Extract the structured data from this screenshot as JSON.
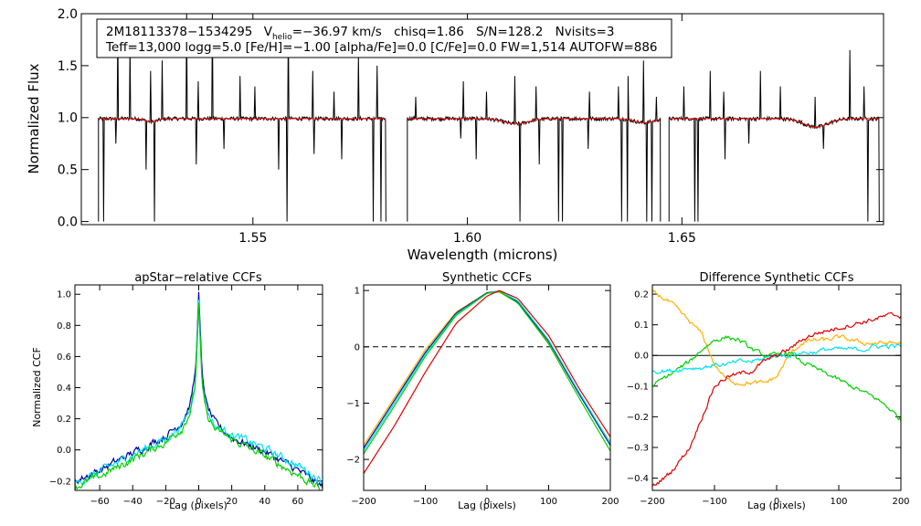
{
  "figure": {
    "info_line1": {
      "star": "2M18113378−1534295",
      "v_prefix": "V",
      "v_sub": "helio",
      "v_value": "=−36.97 km/s",
      "chisq": "chisq=1.86",
      "sn": "S/N=128.2",
      "nvisits": "Nvisits=3"
    },
    "info_line2": "Teff=13,000 logg=5.0 [Fe/H]=−1.00 [alpha/Fe]=0.0 [C/Fe]=0.0 FW=1,514 AUTOFW=886"
  },
  "colors": {
    "observed": "#000000",
    "model": "#ff0000",
    "ccf_blue": "#0000a0",
    "ccf_green": "#00d000",
    "ccf_cyan": "#00e0f0",
    "ccf_orange": "#ffb000",
    "ccf_red": "#e00000"
  },
  "chart_data": [
    {
      "id": "spectrum",
      "type": "line",
      "title": "",
      "xlabel": "Wavelength (microns)",
      "ylabel": "Normalized Flux",
      "xlim": [
        1.51,
        1.697
      ],
      "ylim": [
        -0.03,
        2.0
      ],
      "xticks": [
        1.55,
        1.6,
        1.65
      ],
      "xtick_labels": [
        "1.55",
        "1.60",
        "1.65"
      ],
      "yticks": [
        0.0,
        0.5,
        1.0,
        1.5,
        2.0
      ],
      "ytick_labels": [
        "0.0",
        "0.5",
        "1.0",
        "1.5",
        "2.0"
      ],
      "segments": [
        [
          1.514,
          1.581
        ],
        [
          1.586,
          1.645
        ],
        [
          1.647,
          1.696
        ]
      ],
      "continuum": 0.99,
      "broad_features": [
        {
          "center": 1.5263,
          "depth": 0.03,
          "width": 0.002
        },
        {
          "center": 1.6113,
          "depth": 0.05,
          "width": 0.004
        },
        {
          "center": 1.6411,
          "depth": 0.04,
          "width": 0.003
        },
        {
          "center": 1.6812,
          "depth": 0.08,
          "width": 0.004
        }
      ],
      "emission_spikes": [
        [
          1.5185,
          1.9
        ],
        [
          1.5213,
          1.7
        ],
        [
          1.5262,
          1.45
        ],
        [
          1.5289,
          1.55
        ],
        [
          1.5345,
          2.0
        ],
        [
          1.5372,
          1.35
        ],
        [
          1.5405,
          2.0
        ],
        [
          1.5432,
          1.6
        ],
        [
          1.547,
          1.4
        ],
        [
          1.5505,
          1.3
        ],
        [
          1.556,
          1.6
        ],
        [
          1.5582,
          1.9
        ],
        [
          1.564,
          1.45
        ],
        [
          1.5689,
          1.25
        ],
        [
          1.5746,
          1.6
        ],
        [
          1.579,
          1.5
        ],
        [
          1.5879,
          1.2
        ],
        [
          1.599,
          1.35
        ],
        [
          1.6045,
          1.25
        ],
        [
          1.611,
          1.4
        ],
        [
          1.616,
          1.3
        ],
        [
          1.6222,
          1.35
        ],
        [
          1.6285,
          1.25
        ],
        [
          1.6352,
          1.3
        ],
        [
          1.6375,
          1.4
        ],
        [
          1.6411,
          1.55
        ],
        [
          1.644,
          1.2
        ],
        [
          1.6505,
          1.3
        ],
        [
          1.6566,
          1.45
        ],
        [
          1.6597,
          1.25
        ],
        [
          1.6683,
          1.45
        ],
        [
          1.673,
          1.3
        ],
        [
          1.681,
          1.2
        ],
        [
          1.6892,
          1.65
        ],
        [
          1.6925,
          1.3
        ]
      ],
      "absorption_spikes": [
        [
          1.5152,
          0.0
        ],
        [
          1.518,
          0.75
        ],
        [
          1.5251,
          0.5
        ],
        [
          1.527,
          0.0
        ],
        [
          1.5368,
          0.55
        ],
        [
          1.5432,
          0.7
        ],
        [
          1.556,
          0.5
        ],
        [
          1.558,
          0.0
        ],
        [
          1.5643,
          0.65
        ],
        [
          1.5707,
          0.6
        ],
        [
          1.578,
          0.0
        ],
        [
          1.5799,
          0.0
        ],
        [
          1.5812,
          0.0
        ],
        [
          1.5984,
          0.8
        ],
        [
          1.6021,
          0.6
        ],
        [
          1.6123,
          0.0
        ],
        [
          1.6168,
          0.55
        ],
        [
          1.6213,
          0.0
        ],
        [
          1.6221,
          0.0
        ],
        [
          1.6281,
          0.7
        ],
        [
          1.636,
          0.0
        ],
        [
          1.6373,
          0.0
        ],
        [
          1.6418,
          0.0
        ],
        [
          1.643,
          0.0
        ],
        [
          1.653,
          0.0
        ],
        [
          1.6537,
          0.0
        ],
        [
          1.6601,
          0.6
        ],
        [
          1.6656,
          0.75
        ],
        [
          1.683,
          0.7
        ],
        [
          1.6934,
          0.0
        ]
      ]
    },
    {
      "id": "apstar-ccfs",
      "type": "line",
      "title": "apStar−relative CCFs",
      "xlabel": "Lag (pixels)",
      "ylabel": "Normalized CCF",
      "xlim": [
        -75,
        75
      ],
      "ylim": [
        -0.26,
        1.06
      ],
      "xticks": [
        -60,
        -40,
        -20,
        0,
        20,
        40,
        60
      ],
      "xtick_labels": [
        "−60",
        "−40",
        "−20",
        "0",
        "20",
        "40",
        "60"
      ],
      "yticks": [
        -0.2,
        0.0,
        0.2,
        0.4,
        0.6,
        0.8,
        1.0
      ],
      "ytick_labels": [
        "−0.2",
        "0.0",
        "0.2",
        "0.4",
        "0.6",
        "0.8",
        "1.0"
      ],
      "series": [
        {
          "name": "visit-1",
          "color": "#0000a0",
          "x": [
            -75,
            -60,
            -40,
            -20,
            -10,
            -5,
            -2,
            0,
            2,
            5,
            10,
            20,
            40,
            60,
            75
          ],
          "y": [
            -0.2,
            -0.13,
            -0.02,
            0.09,
            0.18,
            0.3,
            0.5,
            1.0,
            0.48,
            0.28,
            0.17,
            0.08,
            -0.01,
            -0.13,
            -0.24
          ]
        },
        {
          "name": "visit-2",
          "color": "#00e0f0",
          "x": [
            -75,
            -60,
            -40,
            -20,
            -10,
            -5,
            -2,
            0,
            2,
            5,
            10,
            20,
            40,
            60,
            75
          ],
          "y": [
            -0.22,
            -0.14,
            -0.03,
            0.07,
            0.16,
            0.27,
            0.45,
            0.97,
            0.44,
            0.25,
            0.15,
            0.1,
            0.01,
            -0.1,
            -0.2
          ]
        },
        {
          "name": "visit-3",
          "color": "#00d000",
          "x": [
            -75,
            -60,
            -40,
            -20,
            -10,
            -5,
            -2,
            0,
            2,
            5,
            10,
            20,
            40,
            60,
            75
          ],
          "y": [
            -0.24,
            -0.17,
            -0.06,
            0.05,
            0.14,
            0.25,
            0.42,
            0.93,
            0.4,
            0.22,
            0.13,
            0.07,
            -0.04,
            -0.16,
            -0.26
          ]
        }
      ]
    },
    {
      "id": "synthetic-ccfs",
      "type": "line",
      "title": "Synthetic CCFs",
      "xlabel": "Lag (pixels)",
      "ylabel": "",
      "xlim": [
        -200,
        200
      ],
      "ylim": [
        -2.55,
        1.1
      ],
      "xticks": [
        -200,
        -100,
        0,
        100,
        200
      ],
      "xtick_labels": [
        "−200",
        "−100",
        "0",
        "100",
        "200"
      ],
      "yticks": [
        -2,
        -1,
        0,
        1
      ],
      "ytick_labels": [
        "−2",
        "−1",
        "0",
        "1"
      ],
      "zero_line": 0,
      "series": [
        {
          "name": "synthetic-1",
          "color": "#ffb000",
          "x": [
            -200,
            -150,
            -100,
            -50,
            0,
            20,
            50,
            100,
            150,
            200
          ],
          "y": [
            -1.75,
            -0.9,
            -0.05,
            0.62,
            0.96,
            0.97,
            0.78,
            0.08,
            -0.85,
            -1.7
          ]
        },
        {
          "name": "synthetic-2",
          "color": "#0000a0",
          "x": [
            -200,
            -150,
            -100,
            -50,
            0,
            20,
            50,
            100,
            150,
            200
          ],
          "y": [
            -1.8,
            -0.95,
            -0.1,
            0.6,
            0.96,
            0.99,
            0.8,
            0.1,
            -0.85,
            -1.75
          ]
        },
        {
          "name": "synthetic-3",
          "color": "#00e0f0",
          "x": [
            -200,
            -150,
            -100,
            -50,
            0,
            20,
            50,
            100,
            150,
            200
          ],
          "y": [
            -1.85,
            -1.0,
            -0.13,
            0.58,
            0.95,
            0.99,
            0.82,
            0.12,
            -0.82,
            -1.72
          ]
        },
        {
          "name": "synthetic-4",
          "color": "#00d000",
          "x": [
            -200,
            -150,
            -100,
            -50,
            0,
            20,
            50,
            100,
            150,
            200
          ],
          "y": [
            -1.9,
            -1.05,
            -0.17,
            0.56,
            0.95,
            0.98,
            0.78,
            0.05,
            -0.92,
            -1.85
          ]
        },
        {
          "name": "synthetic-5",
          "color": "#e00000",
          "x": [
            -200,
            -150,
            -100,
            -50,
            0,
            20,
            50,
            100,
            150,
            200
          ],
          "y": [
            -2.25,
            -1.4,
            -0.45,
            0.42,
            0.9,
            1.0,
            0.86,
            0.2,
            -0.75,
            -1.6
          ]
        }
      ]
    },
    {
      "id": "difference-ccfs",
      "type": "line",
      "title": "Difference Synthetic CCFs",
      "xlabel": "Lag (pixels)",
      "ylabel": "",
      "xlim": [
        -200,
        200
      ],
      "ylim": [
        -0.44,
        0.23
      ],
      "xticks": [
        -200,
        -100,
        0,
        100,
        200
      ],
      "xtick_labels": [
        "−200",
        "−100",
        "0",
        "100",
        "200"
      ],
      "yticks": [
        -0.4,
        -0.3,
        -0.2,
        -0.1,
        0.0,
        0.1,
        0.2
      ],
      "ytick_labels": [
        "−0.4",
        "−0.3",
        "−0.2",
        "−0.1",
        "0.0",
        "0.1",
        "0.2"
      ],
      "zero_line": 0,
      "series": [
        {
          "name": "diff-orange",
          "color": "#ffb000",
          "x": [
            -200,
            -170,
            -140,
            -120,
            -100,
            -80,
            -60,
            -40,
            -20,
            0,
            20,
            40,
            60,
            80,
            100,
            120,
            140,
            160,
            180,
            200
          ],
          "y": [
            0.21,
            0.17,
            0.11,
            0.07,
            -0.03,
            -0.08,
            -0.09,
            -0.09,
            -0.09,
            -0.07,
            0.0,
            0.04,
            0.05,
            0.05,
            0.06,
            0.05,
            0.04,
            0.04,
            0.04,
            0.04
          ]
        },
        {
          "name": "diff-green",
          "color": "#00d000",
          "x": [
            -200,
            -170,
            -140,
            -120,
            -100,
            -80,
            -60,
            -40,
            -20,
            0,
            20,
            40,
            60,
            80,
            100,
            120,
            140,
            160,
            180,
            200
          ],
          "y": [
            -0.1,
            -0.06,
            -0.02,
            0.02,
            0.05,
            0.06,
            0.05,
            0.02,
            0.0,
            0.0,
            0.01,
            -0.02,
            -0.04,
            -0.06,
            -0.08,
            -0.1,
            -0.12,
            -0.14,
            -0.17,
            -0.21
          ]
        },
        {
          "name": "diff-cyan",
          "color": "#00e0f0",
          "x": [
            -200,
            -170,
            -140,
            -120,
            -100,
            -80,
            -60,
            -40,
            -20,
            0,
            20,
            40,
            60,
            80,
            100,
            120,
            140,
            160,
            180,
            200
          ],
          "y": [
            -0.05,
            -0.05,
            -0.04,
            -0.04,
            -0.03,
            -0.03,
            -0.02,
            -0.02,
            -0.01,
            0.0,
            0.0,
            0.01,
            0.01,
            0.02,
            0.02,
            0.02,
            0.02,
            0.03,
            0.03,
            0.03
          ]
        },
        {
          "name": "diff-red",
          "color": "#e00000",
          "x": [
            -200,
            -170,
            -140,
            -120,
            -100,
            -80,
            -60,
            -40,
            -20,
            0,
            20,
            40,
            60,
            80,
            100,
            120,
            140,
            160,
            180,
            200
          ],
          "y": [
            -0.43,
            -0.38,
            -0.3,
            -0.2,
            -0.1,
            -0.07,
            -0.06,
            -0.05,
            -0.02,
            0.0,
            0.02,
            0.05,
            0.07,
            0.08,
            0.09,
            0.1,
            0.11,
            0.12,
            0.13,
            0.13
          ]
        }
      ]
    }
  ]
}
